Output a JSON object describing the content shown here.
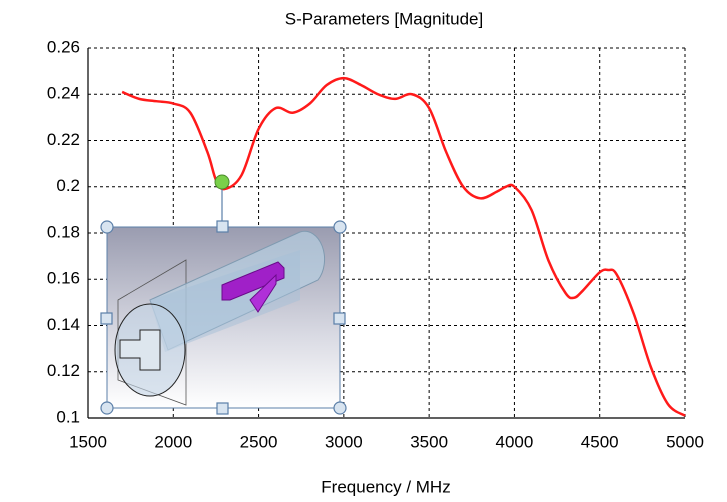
{
  "chart_data": {
    "type": "line",
    "title": "S-Parameters [Magnitude]",
    "x_label": "Frequency / MHz",
    "x": [
      1700,
      1800,
      1900,
      2000,
      2100,
      2200,
      2250,
      2300,
      2400,
      2500,
      2600,
      2700,
      2800,
      2900,
      3000,
      3100,
      3200,
      3300,
      3400,
      3500,
      3600,
      3700,
      3800,
      3900,
      3950,
      4000,
      4100,
      4200,
      4300,
      4350,
      4400,
      4500,
      4550,
      4600,
      4700,
      4800,
      4900,
      5000
    ],
    "values": [
      0.241,
      0.238,
      0.237,
      0.236,
      0.232,
      0.215,
      0.203,
      0.199,
      0.205,
      0.225,
      0.234,
      0.232,
      0.236,
      0.244,
      0.247,
      0.244,
      0.24,
      0.238,
      0.24,
      0.234,
      0.215,
      0.2,
      0.195,
      0.198,
      0.2,
      0.2,
      0.19,
      0.168,
      0.154,
      0.152,
      0.155,
      0.163,
      0.164,
      0.162,
      0.145,
      0.122,
      0.106,
      0.101
    ],
    "color": "#ff1a1a",
    "xlim": [
      1500,
      5000
    ],
    "xticks": [
      1500,
      2000,
      2500,
      3000,
      3500,
      4000,
      4500,
      5000
    ],
    "ylim": [
      0.1,
      0.26
    ],
    "yticks": [
      0.1,
      0.12,
      0.14,
      0.16,
      0.18,
      0.2,
      0.22,
      0.24,
      0.26
    ],
    "grid": true
  }
}
